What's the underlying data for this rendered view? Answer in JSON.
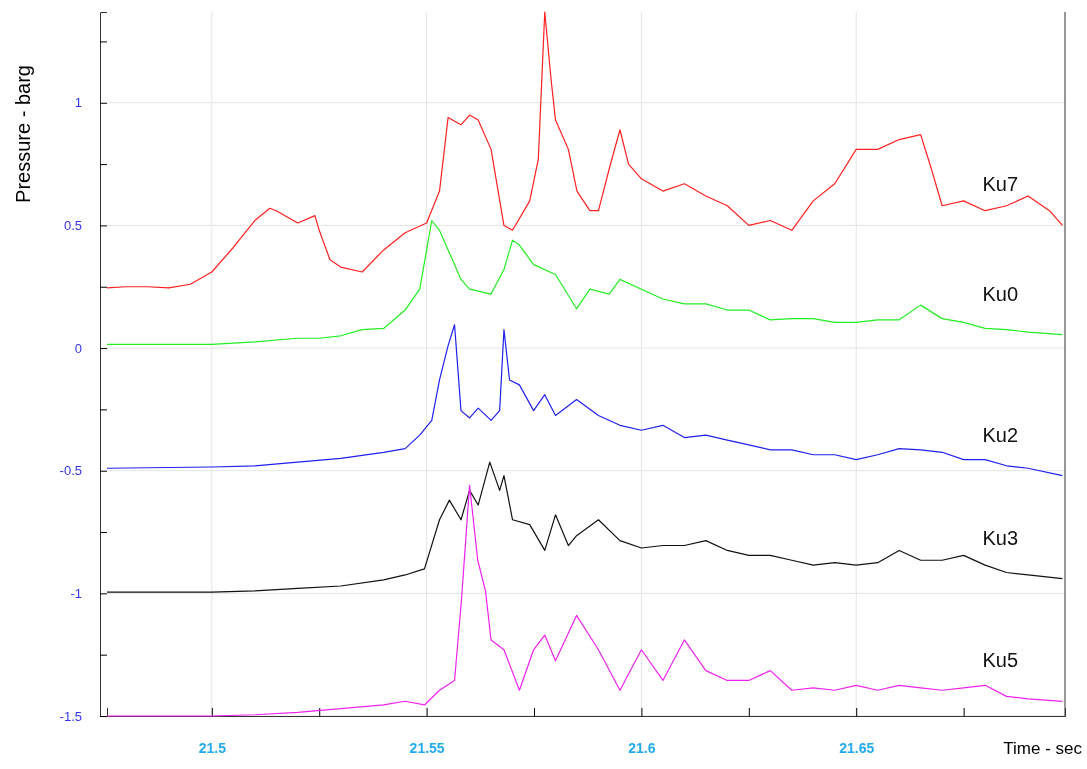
{
  "chart_data": {
    "type": "line",
    "xlabel": "Time - sec",
    "ylabel": "Pressure - barg",
    "xlim": [
      21.4756,
      21.6986
    ],
    "ylim": [
      -1.5,
      1.37
    ],
    "xticks": [
      21.5,
      {
        "value": 21.525,
        "label": null
      },
      21.55,
      {
        "value": 21.575,
        "label": null
      },
      21.6,
      {
        "value": 21.625,
        "label": null
      },
      21.65,
      {
        "value": 21.675,
        "label": null
      }
    ],
    "yticks": [
      -1.5,
      {
        "value": -1.25,
        "label": null
      },
      -1,
      {
        "value": -0.75,
        "label": null
      },
      -0.5,
      {
        "value": -0.25,
        "label": null
      },
      0,
      {
        "value": 0.25,
        "label": null
      },
      0.5,
      {
        "value": 0.75,
        "label": null
      },
      1,
      {
        "value": 1.25,
        "label": null
      }
    ],
    "grid": true,
    "legend": false,
    "marker": "none",
    "line_style": "solid",
    "series": [
      {
        "name": "Ku7",
        "color": "#ff2020",
        "x": [
          21.4756,
          21.48,
          21.485,
          21.49,
          21.495,
          21.5,
          21.505,
          21.51,
          21.5135,
          21.515,
          21.52,
          21.524,
          21.525,
          21.5275,
          21.53,
          21.535,
          21.54,
          21.545,
          21.55,
          21.553,
          21.555,
          21.558,
          21.56,
          21.562,
          21.565,
          21.568,
          21.57,
          21.574,
          21.576,
          21.5775,
          21.579,
          21.58,
          21.583,
          21.585,
          21.588,
          21.59,
          21.5925,
          21.595,
          21.597,
          21.6,
          21.605,
          21.61,
          21.615,
          21.62,
          21.625,
          21.63,
          21.635,
          21.64,
          21.645,
          21.65,
          21.655,
          21.66,
          21.665,
          21.6675,
          21.67,
          21.675,
          21.68,
          21.685,
          21.69,
          21.695,
          21.698
        ],
        "values": [
          0.245,
          0.25,
          0.25,
          0.245,
          0.26,
          0.31,
          0.41,
          0.52,
          0.57,
          0.56,
          0.51,
          0.54,
          0.48,
          0.36,
          0.33,
          0.31,
          0.4,
          0.47,
          0.51,
          0.64,
          0.94,
          0.91,
          0.95,
          0.93,
          0.81,
          0.5,
          0.48,
          0.6,
          0.77,
          1.37,
          1.09,
          0.93,
          0.81,
          0.64,
          0.56,
          0.56,
          0.73,
          0.89,
          0.75,
          0.69,
          0.64,
          0.67,
          0.62,
          0.58,
          0.5,
          0.52,
          0.48,
          0.6,
          0.67,
          0.81,
          0.81,
          0.85,
          0.87,
          0.73,
          0.58,
          0.6,
          0.56,
          0.58,
          0.62,
          0.56,
          0.5
        ]
      },
      {
        "name": "Ku0",
        "color": "#22ee22",
        "x": [
          21.4756,
          21.5,
          21.51,
          21.52,
          21.525,
          21.53,
          21.535,
          21.54,
          21.545,
          21.5484,
          21.5512,
          21.553,
          21.555,
          21.558,
          21.56,
          21.565,
          21.568,
          21.57,
          21.5716,
          21.5749,
          21.58,
          21.5849,
          21.588,
          21.5925,
          21.595,
          21.6,
          21.605,
          21.61,
          21.615,
          21.62,
          21.625,
          21.63,
          21.635,
          21.64,
          21.645,
          21.65,
          21.655,
          21.66,
          21.665,
          21.67,
          21.675,
          21.68,
          21.685,
          21.69,
          21.698
        ],
        "values": [
          0.015,
          0.015,
          0.025,
          0.04,
          0.04,
          0.05,
          0.075,
          0.08,
          0.155,
          0.24,
          0.52,
          0.48,
          0.4,
          0.28,
          0.24,
          0.22,
          0.32,
          0.44,
          0.42,
          0.34,
          0.3,
          0.16,
          0.24,
          0.22,
          0.28,
          0.24,
          0.2,
          0.18,
          0.18,
          0.155,
          0.155,
          0.115,
          0.12,
          0.12,
          0.105,
          0.105,
          0.115,
          0.115,
          0.175,
          0.12,
          0.105,
          0.08,
          0.075,
          0.065,
          0.055
        ]
      },
      {
        "name": "Ku2",
        "color": "#2020ee",
        "x": [
          21.4756,
          21.5,
          21.51,
          21.52,
          21.53,
          21.54,
          21.545,
          21.5484,
          21.5512,
          21.553,
          21.555,
          21.5565,
          21.558,
          21.56,
          21.562,
          21.565,
          21.567,
          21.568,
          21.5693,
          21.5716,
          21.5749,
          21.5775,
          21.58,
          21.5849,
          21.59,
          21.595,
          21.6,
          21.605,
          21.61,
          21.615,
          21.62,
          21.625,
          21.63,
          21.635,
          21.64,
          21.645,
          21.65,
          21.655,
          21.66,
          21.665,
          21.67,
          21.675,
          21.68,
          21.685,
          21.69,
          21.698
        ],
        "values": [
          -0.49,
          -0.485,
          -0.48,
          -0.465,
          -0.45,
          -0.425,
          -0.41,
          -0.355,
          -0.295,
          -0.13,
          0.01,
          0.095,
          -0.255,
          -0.285,
          -0.245,
          -0.295,
          -0.255,
          0.075,
          -0.13,
          -0.15,
          -0.255,
          -0.19,
          -0.275,
          -0.21,
          -0.275,
          -0.315,
          -0.335,
          -0.315,
          -0.365,
          -0.355,
          -0.375,
          -0.395,
          -0.415,
          -0.415,
          -0.435,
          -0.435,
          -0.455,
          -0.435,
          -0.41,
          -0.415,
          -0.425,
          -0.455,
          -0.455,
          -0.48,
          -0.49,
          -0.52
        ]
      },
      {
        "name": "Ku3",
        "color": "#111111",
        "x": [
          21.4756,
          21.5,
          21.51,
          21.52,
          21.53,
          21.54,
          21.545,
          21.5495,
          21.553,
          21.5553,
          21.558,
          21.56,
          21.562,
          21.5647,
          21.567,
          21.568,
          21.57,
          21.574,
          21.5775,
          21.58,
          21.583,
          21.5849,
          21.59,
          21.595,
          21.6,
          21.605,
          21.61,
          21.615,
          21.62,
          21.625,
          21.63,
          21.635,
          21.64,
          21.645,
          21.65,
          21.655,
          21.66,
          21.665,
          21.67,
          21.675,
          21.68,
          21.685,
          21.69,
          21.698
        ],
        "values": [
          -0.995,
          -0.995,
          -0.99,
          -0.98,
          -0.97,
          -0.945,
          -0.925,
          -0.9,
          -0.7,
          -0.62,
          -0.7,
          -0.58,
          -0.64,
          -0.465,
          -0.58,
          -0.52,
          -0.7,
          -0.72,
          -0.825,
          -0.68,
          -0.805,
          -0.765,
          -0.7,
          -0.785,
          -0.815,
          -0.805,
          -0.805,
          -0.785,
          -0.825,
          -0.845,
          -0.845,
          -0.865,
          -0.885,
          -0.875,
          -0.885,
          -0.875,
          -0.825,
          -0.865,
          -0.865,
          -0.845,
          -0.885,
          -0.915,
          -0.925,
          -0.94
        ]
      },
      {
        "name": "Ku5",
        "color": "#ee22ee",
        "x": [
          21.4756,
          21.5,
          21.51,
          21.52,
          21.53,
          21.54,
          21.545,
          21.5495,
          21.553,
          21.5565,
          21.5581,
          21.56,
          21.5619,
          21.5637,
          21.565,
          21.568,
          21.5716,
          21.5749,
          21.5775,
          21.58,
          21.5849,
          21.59,
          21.595,
          21.6,
          21.605,
          21.61,
          21.615,
          21.62,
          21.625,
          21.63,
          21.635,
          21.64,
          21.645,
          21.65,
          21.655,
          21.66,
          21.665,
          21.67,
          21.675,
          21.68,
          21.685,
          21.69,
          21.698
        ],
        "values": [
          -1.5,
          -1.5,
          -1.495,
          -1.485,
          -1.47,
          -1.455,
          -1.44,
          -1.455,
          -1.395,
          -1.355,
          -1.03,
          -0.56,
          -0.865,
          -0.99,
          -1.19,
          -1.23,
          -1.395,
          -1.23,
          -1.17,
          -1.275,
          -1.09,
          -1.23,
          -1.395,
          -1.23,
          -1.355,
          -1.19,
          -1.315,
          -1.355,
          -1.355,
          -1.315,
          -1.395,
          -1.385,
          -1.395,
          -1.375,
          -1.395,
          -1.375,
          -1.385,
          -1.395,
          -1.385,
          -1.375,
          -1.42,
          -1.43,
          -1.44
        ]
      }
    ]
  }
}
